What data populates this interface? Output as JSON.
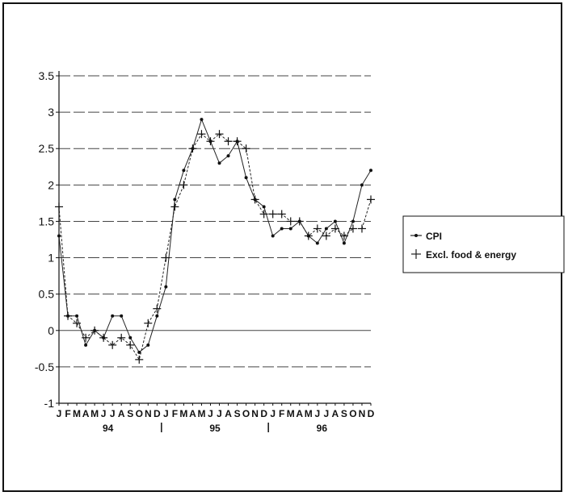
{
  "chart_data": {
    "type": "line",
    "title": "",
    "xlabel": "",
    "ylabel": "",
    "ylim": [
      -1,
      3.5
    ],
    "yticks": [
      "3.5",
      "3",
      "2.5",
      "2",
      "1.5",
      "1",
      "0.5",
      "0",
      "-0.5",
      "-1"
    ],
    "month_ticks": [
      "J",
      "F",
      "M",
      "A",
      "M",
      "J",
      "J",
      "A",
      "S",
      "O",
      "N",
      "D",
      "J",
      "F",
      "M",
      "A",
      "M",
      "J",
      "J",
      "A",
      "S",
      "O",
      "N",
      "D",
      "J",
      "F",
      "M",
      "A",
      "M",
      "J",
      "J",
      "A",
      "S",
      "O",
      "N",
      "D"
    ],
    "year_labels": [
      "94",
      "95",
      "96"
    ],
    "grid": "horizontal dashed",
    "legend_position": "right",
    "series": [
      {
        "name": "CPI",
        "marker": "dot",
        "values": [
          1.3,
          0.2,
          0.2,
          -0.2,
          0.0,
          -0.1,
          0.2,
          0.2,
          -0.1,
          -0.3,
          -0.2,
          0.2,
          0.6,
          1.8,
          2.2,
          2.5,
          2.9,
          2.6,
          2.3,
          2.4,
          2.6,
          2.1,
          1.8,
          1.7,
          1.3,
          1.4,
          1.4,
          1.5,
          1.3,
          1.2,
          1.4,
          1.5,
          1.2,
          1.5,
          2.0,
          2.2
        ]
      },
      {
        "name": "Excl. food & energy",
        "marker": "plus",
        "values": [
          1.7,
          0.2,
          0.1,
          -0.1,
          0.0,
          -0.1,
          -0.2,
          -0.1,
          -0.2,
          -0.4,
          0.1,
          0.3,
          1.0,
          1.7,
          2.0,
          2.5,
          2.7,
          2.6,
          2.7,
          2.6,
          2.6,
          2.5,
          1.8,
          1.6,
          1.6,
          1.6,
          1.5,
          1.5,
          1.3,
          1.4,
          1.3,
          1.4,
          1.3,
          1.4,
          1.4,
          1.8
        ]
      }
    ],
    "colors": {
      "line": "#222222",
      "grid": "#444444",
      "axis": "#111111"
    }
  }
}
